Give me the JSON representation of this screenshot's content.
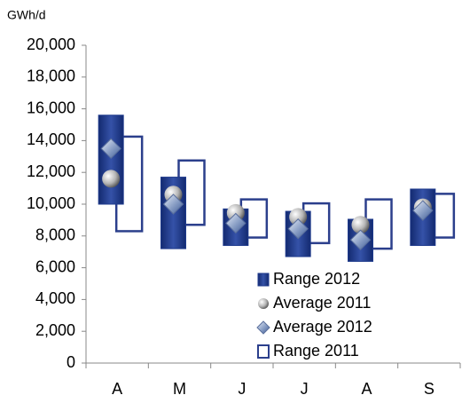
{
  "chart_data": {
    "type": "range",
    "y_unit": "GWh/d",
    "categories": [
      "A",
      "M",
      "J",
      "J",
      "A",
      "S"
    ],
    "ylim": [
      0,
      20000
    ],
    "yticks": [
      0,
      {
        "value": 2000,
        "label": "2,000"
      },
      {
        "value": 4000,
        "label": "4,000"
      },
      {
        "value": 6000,
        "label": "6,000"
      },
      {
        "value": 8000,
        "label": "8,000"
      },
      {
        "value": 10000,
        "label": "10,000"
      },
      {
        "value": 12000,
        "label": "12,000"
      },
      {
        "value": 14000,
        "label": "14,000"
      },
      {
        "value": 16000,
        "label": "16,000"
      },
      {
        "value": 18000,
        "label": "18,000"
      },
      {
        "value": 20000,
        "label": "20,000"
      }
    ],
    "series": [
      {
        "name": "Range 2012",
        "kind": "range",
        "color": "#1e3a8c",
        "low": [
          10000,
          7200,
          7400,
          6700,
          6400,
          7400
        ],
        "high": [
          15600,
          11700,
          9700,
          9550,
          9050,
          10950
        ]
      },
      {
        "name": "Average 2011",
        "kind": "sphere",
        "color": "#a6a6a6",
        "values": [
          11600,
          10600,
          9450,
          9200,
          8700,
          9800
        ]
      },
      {
        "name": "Average 2012",
        "kind": "diamond",
        "color": "#8fa3c8",
        "values": [
          13500,
          10000,
          8800,
          8450,
          7750,
          9600
        ]
      },
      {
        "name": "Range 2011",
        "kind": "outline",
        "color": "#2b3f8c",
        "low": [
          8300,
          8700,
          7900,
          7550,
          7200,
          7900
        ],
        "high": [
          14250,
          12750,
          10300,
          10050,
          10300,
          10650
        ]
      }
    ]
  }
}
